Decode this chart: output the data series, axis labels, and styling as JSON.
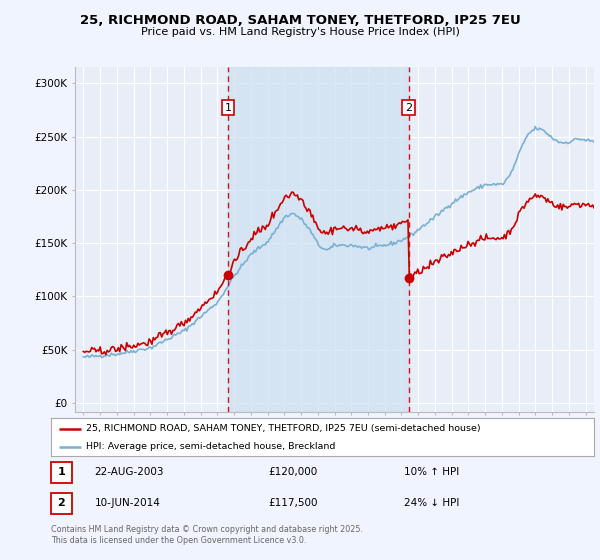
{
  "title_line1": "25, RICHMOND ROAD, SAHAM TONEY, THETFORD, IP25 7EU",
  "title_line2": "Price paid vs. HM Land Registry's House Price Index (HPI)",
  "background_color": "#f0f4ff",
  "plot_bg_color": "#e8eef8",
  "grid_color": "#ffffff",
  "shade_color": "#cce0f0",
  "red_line_label": "25, RICHMOND ROAD, SAHAM TONEY, THETFORD, IP25 7EU (semi-detached house)",
  "blue_line_label": "HPI: Average price, semi-detached house, Breckland",
  "transaction1_date": "22-AUG-2003",
  "transaction1_price": "£120,000",
  "transaction1_hpi": "10% ↑ HPI",
  "transaction2_date": "10-JUN-2014",
  "transaction2_price": "£117,500",
  "transaction2_hpi": "24% ↓ HPI",
  "vline1_x": 2003.64,
  "vline2_x": 2014.44,
  "marker1_price": 120000,
  "marker2_price": 117500,
  "yticks": [
    0,
    50000,
    100000,
    150000,
    200000,
    250000,
    300000
  ],
  "ytick_labels": [
    "£0",
    "£50K",
    "£100K",
    "£150K",
    "£200K",
    "£250K",
    "£300K"
  ],
  "ylim": [
    -8000,
    315000
  ],
  "xlim_start": 1994.5,
  "xlim_end": 2025.5,
  "footer": "Contains HM Land Registry data © Crown copyright and database right 2025.\nThis data is licensed under the Open Government Licence v3.0.",
  "red_color": "#cc0000",
  "blue_color": "#7ab0d4",
  "vline_color": "#cc0000"
}
